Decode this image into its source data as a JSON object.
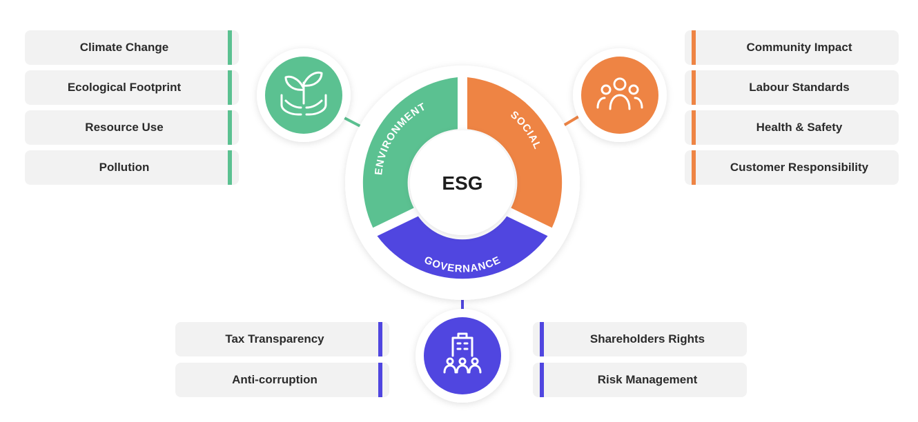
{
  "center": "ESG",
  "colors": {
    "environment": "#5bc191",
    "social": "#ee8444",
    "governance": "#5046e0"
  },
  "segments": {
    "environment": "ENVIRONMENT",
    "social": "SOCIAL",
    "governance": "GOVERNANCE"
  },
  "icons": {
    "environment": "plant-hands-icon",
    "social": "people-group-icon",
    "governance": "building-people-icon"
  },
  "environment_items": [
    "Climate Change",
    "Ecological Footprint",
    "Resource Use",
    "Pollution"
  ],
  "social_items": [
    "Community Impact",
    "Labour Standards",
    "Health & Safety",
    "Customer Responsibility"
  ],
  "governance_left_items": [
    "Tax Transparency",
    "Anti-corruption"
  ],
  "governance_right_items": [
    "Shareholders Rights",
    "Risk Management"
  ]
}
